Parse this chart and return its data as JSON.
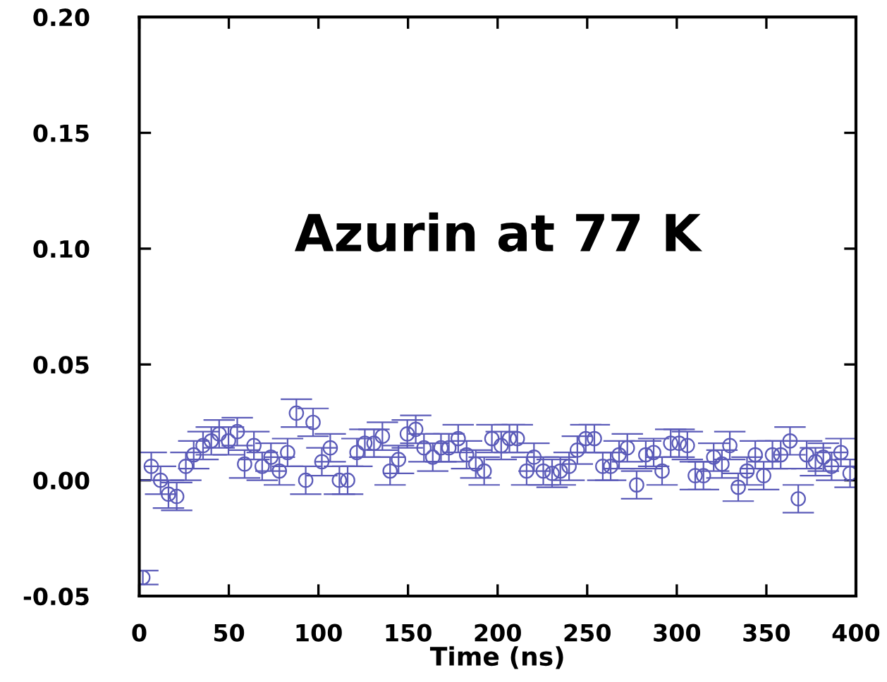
{
  "chart_data": {
    "type": "scatter",
    "xlabel": "Time (ns)",
    "annotations": [
      "Azurin at 77 K"
    ],
    "xlim": [
      0,
      400
    ],
    "ylim": [
      -0.05,
      0.2
    ],
    "xticks": [
      0,
      50,
      100,
      150,
      200,
      250,
      300,
      350,
      400
    ],
    "yticks": [
      {
        "value": -0.05,
        "label": "-0.05"
      },
      {
        "value": 0,
        "label": "0.00"
      },
      {
        "value": 0.05,
        "label": "0.05"
      },
      {
        "value": 0.1,
        "label": "0.10"
      },
      {
        "value": 0.15,
        "label": "0.15"
      },
      {
        "value": 0.2,
        "label": "0.20"
      }
    ],
    "grid": false,
    "legend": false,
    "marker": "circle",
    "series": [
      {
        "color": "#5a5ab8",
        "x": [
          2,
          6.7,
          11.9,
          16.3,
          20.9,
          26,
          30.4,
          35.6,
          40.2,
          44.6,
          49.8,
          54.7,
          58.8,
          64,
          68.6,
          73.5,
          78.2,
          82.8,
          87.7,
          92.9,
          97,
          101.9,
          106.6,
          111.7,
          116.3,
          121.5,
          125.9,
          131,
          135.7,
          140,
          144.7,
          149.6,
          154.3,
          158.9,
          163.8,
          168.4,
          172.8,
          178,
          182.7,
          187.8,
          192.5,
          196.8,
          202,
          206.6,
          211,
          216.2,
          220.3,
          225.5,
          230.4,
          235,
          239.9,
          244.5,
          249.2,
          254,
          258.7,
          263.1,
          267.8,
          272.4,
          277.6,
          282.7,
          287.1,
          291.8,
          296.6,
          301.3,
          305.9,
          310.3,
          314.9,
          320.6,
          325.2,
          329.6,
          334.3,
          339.2,
          343.8,
          348.5,
          353.4,
          358,
          363.2,
          367.8,
          372.5,
          377.4,
          381.8,
          386.4,
          391.6,
          396.7
        ],
        "values": [
          -0.042,
          0.006,
          0.0,
          -0.006,
          -0.007,
          0.006,
          0.011,
          0.015,
          0.017,
          0.02,
          0.017,
          0.021,
          0.007,
          0.015,
          0.006,
          0.01,
          0.004,
          0.012,
          0.029,
          0.0,
          0.025,
          0.008,
          0.014,
          0.0,
          0.0,
          0.012,
          0.016,
          0.016,
          0.019,
          0.004,
          0.009,
          0.02,
          0.022,
          0.014,
          0.01,
          0.014,
          0.014,
          0.018,
          0.011,
          0.007,
          0.004,
          0.018,
          0.015,
          0.018,
          0.018,
          0.004,
          0.01,
          0.004,
          0.003,
          0.004,
          0.006,
          0.013,
          0.018,
          0.018,
          0.006,
          0.006,
          0.011,
          0.014,
          -0.002,
          0.011,
          0.012,
          0.004,
          0.016,
          0.016,
          0.015,
          0.002,
          0.002,
          0.01,
          0.007,
          0.015,
          -0.003,
          0.004,
          0.011,
          0.002,
          0.011,
          0.011,
          0.017,
          -0.008,
          0.011,
          0.008,
          0.01,
          0.006,
          0.012,
          0.003
        ],
        "errors": [
          0.003,
          0.006,
          0.006,
          0.006,
          0.006,
          0.006,
          0.006,
          0.006,
          0.006,
          0.006,
          0.006,
          0.006,
          0.006,
          0.006,
          0.006,
          0.006,
          0.006,
          0.006,
          0.006,
          0.006,
          0.006,
          0.006,
          0.006,
          0.006,
          0.006,
          0.006,
          0.006,
          0.006,
          0.006,
          0.006,
          0.006,
          0.006,
          0.006,
          0.006,
          0.006,
          0.006,
          0.006,
          0.006,
          0.006,
          0.006,
          0.006,
          0.006,
          0.006,
          0.006,
          0.006,
          0.006,
          0.006,
          0.006,
          0.006,
          0.006,
          0.006,
          0.006,
          0.006,
          0.006,
          0.006,
          0.006,
          0.006,
          0.006,
          0.006,
          0.006,
          0.006,
          0.006,
          0.006,
          0.006,
          0.006,
          0.006,
          0.006,
          0.006,
          0.006,
          0.006,
          0.006,
          0.006,
          0.006,
          0.006,
          0.006,
          0.006,
          0.006,
          0.006,
          0.006,
          0.006,
          0.006,
          0.006,
          0.006,
          0.006
        ]
      }
    ]
  }
}
